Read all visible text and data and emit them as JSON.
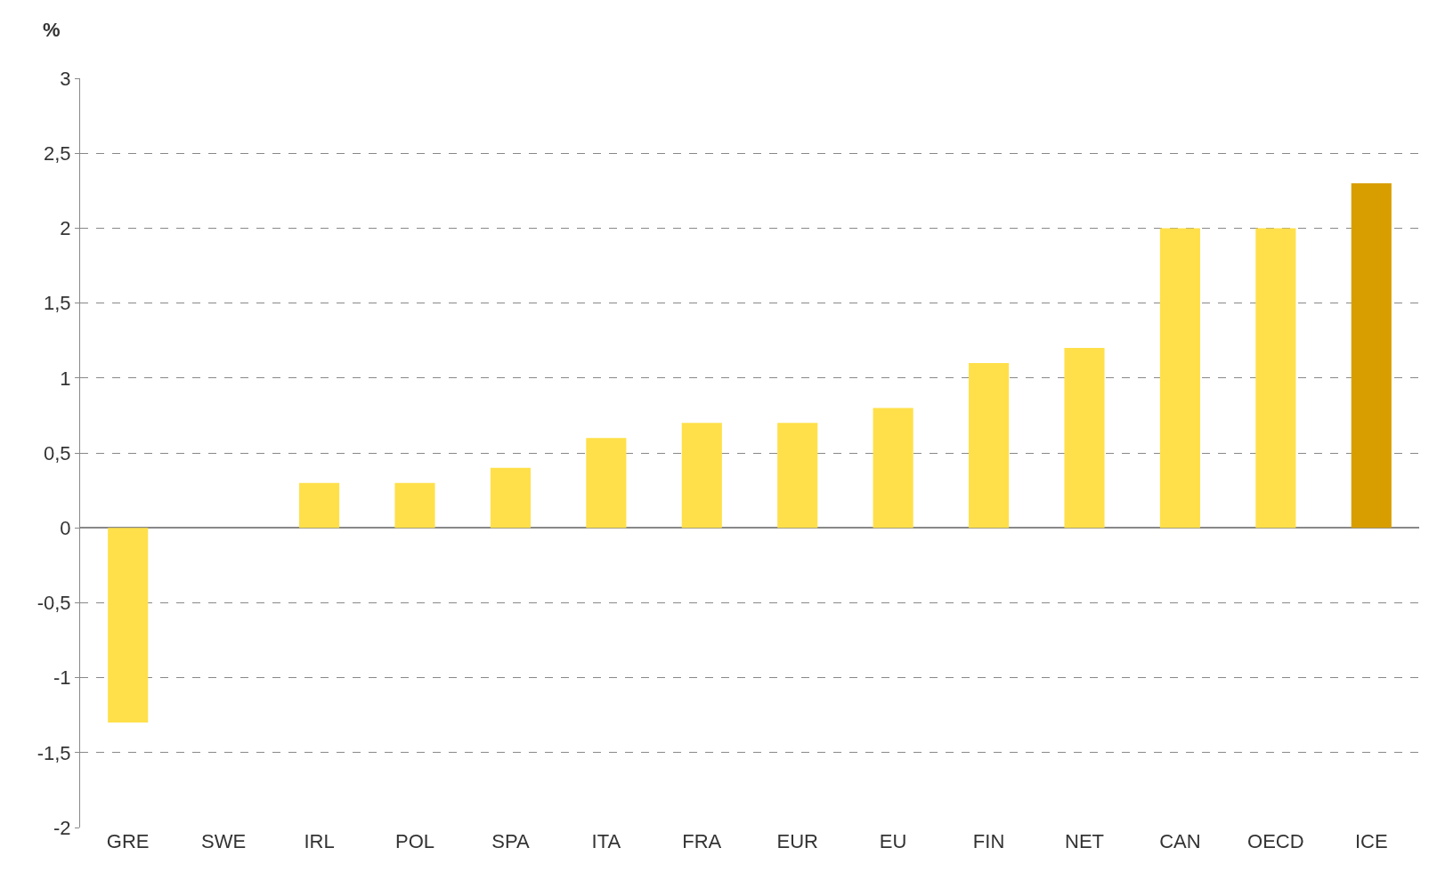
{
  "chart_data": {
    "type": "bar",
    "ylabel": "%",
    "categories": [
      "GRE",
      "SWE",
      "IRL",
      "POL",
      "SPA",
      "ITA",
      "FRA",
      "EUR",
      "EU",
      "FIN",
      "NET",
      "CAN",
      "OECD",
      "ICE"
    ],
    "values": [
      -1.3,
      0,
      0.3,
      0.3,
      0.4,
      0.6,
      0.7,
      0.7,
      0.8,
      1.1,
      1.2,
      2.0,
      2.0,
      2.3
    ],
    "colors": [
      "#ffe04a",
      "#ffe04a",
      "#ffe04a",
      "#ffe04a",
      "#ffe04a",
      "#ffe04a",
      "#ffe04a",
      "#ffe04a",
      "#ffe04a",
      "#ffe04a",
      "#ffe04a",
      "#ffe04a",
      "#ffe04a",
      "#d89e00"
    ],
    "ylim": [
      -2,
      3
    ],
    "yticks": [
      {
        "value": -2,
        "label": "-2"
      },
      {
        "value": -1.5,
        "label": "-1,5"
      },
      {
        "value": -1,
        "label": "-1"
      },
      {
        "value": -0.5,
        "label": "-0,5"
      },
      {
        "value": 0,
        "label": "0"
      },
      {
        "value": 0.5,
        "label": "0,5"
      },
      {
        "value": 1,
        "label": "1"
      },
      {
        "value": 1.5,
        "label": "1,5"
      },
      {
        "value": 2,
        "label": "2"
      },
      {
        "value": 2.5,
        "label": "2,5"
      },
      {
        "value": 3,
        "label": "3"
      }
    ],
    "grid": "y"
  }
}
